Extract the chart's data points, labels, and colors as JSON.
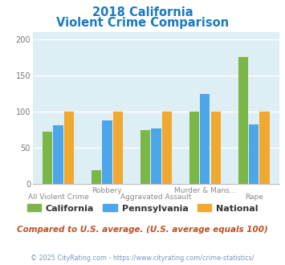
{
  "title_line1": "2018 California",
  "title_line2": "Violent Crime Comparison",
  "title_color": "#1a7abf",
  "categories": [
    "All Violent Crime",
    "Robbery",
    "Aggravated Assault",
    "Murder & Mans...",
    "Rape"
  ],
  "series": {
    "California": [
      72,
      19,
      74,
      100,
      175
    ],
    "Pennsylvania": [
      81,
      88,
      77,
      124,
      82
    ],
    "National": [
      100,
      100,
      100,
      100,
      100
    ]
  },
  "colors": {
    "California": "#7ab648",
    "Pennsylvania": "#4da6e8",
    "National": "#f0a830"
  },
  "ylim": [
    0,
    210
  ],
  "yticks": [
    0,
    50,
    100,
    150,
    200
  ],
  "plot_bg_color": "#ddeef4",
  "grid_color": "#ffffff",
  "subtitle": "Compared to U.S. average. (U.S. average equals 100)",
  "subtitle_color": "#c05020",
  "footer": "© 2025 CityRating.com - https://www.cityrating.com/crime-statistics/",
  "footer_color": "#7799bb",
  "bar_width": 0.22
}
